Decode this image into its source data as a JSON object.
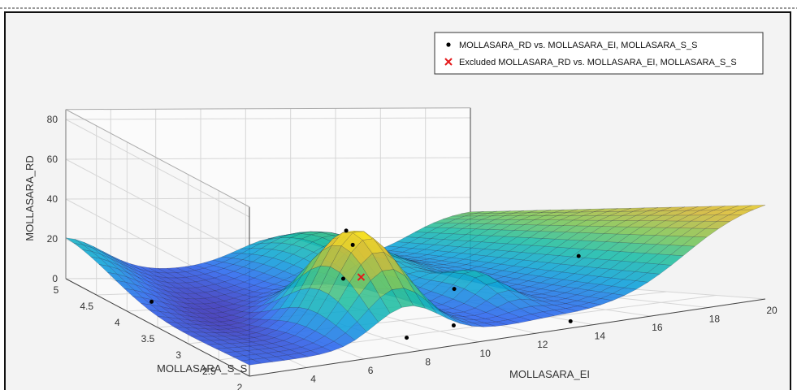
{
  "chart_data": {
    "type": "surface",
    "xlabel": "MOLLASARA_EI",
    "ylabel": "MOLLASARA_S_S",
    "zlabel": "MOLLASARA_RD",
    "x_ticks": [
      "4",
      "6",
      "8",
      "10",
      "12",
      "14",
      "16",
      "18",
      "20"
    ],
    "y_ticks": [
      "2",
      "2.5",
      "3",
      "3.5",
      "4",
      "4.5",
      "5"
    ],
    "z_ticks": [
      "0",
      "20",
      "40",
      "60",
      "80"
    ],
    "xlim": [
      2,
      20
    ],
    "ylim": [
      2,
      5
    ],
    "zlim": [
      0,
      85
    ],
    "grid": true,
    "legend": {
      "placement": "top-right",
      "entries": [
        "MOLLASARA_RD vs. MOLLASARA_EI, MOLLASARA_S_S",
        "Excluded MOLLASARA_RD vs. MOLLASARA_EI, MOLLASARA_S_S"
      ]
    },
    "series": [
      {
        "name": "MOLLASARA_RD vs. MOLLASARA_EI, MOLLASARA_S_S",
        "marker": "dot",
        "points": [
          {
            "x": 3.0,
            "y": 4.0,
            "z": 4
          },
          {
            "x": 8.5,
            "y": 3.2,
            "z": 45
          },
          {
            "x": 8.0,
            "y": 2.2,
            "z": 4
          },
          {
            "x": 10.5,
            "y": 2.5,
            "z": 2
          },
          {
            "x": 12.0,
            "y": 3.0,
            "z": 13
          },
          {
            "x": 13.5,
            "y": 2.1,
            "z": 2
          },
          {
            "x": 16.0,
            "y": 2.8,
            "z": 25
          },
          {
            "x": 12.5,
            "y": 4.5,
            "z": 4
          },
          {
            "x": 14.0,
            "y": 4.8,
            "z": 18
          }
        ]
      },
      {
        "name": "Excluded MOLLASARA_RD vs. MOLLASARA_EI, MOLLASARA_S_S",
        "marker": "x",
        "color": "#e41a1c",
        "points": [
          {
            "x": 8.5,
            "y": 3.0,
            "z": 24
          }
        ]
      }
    ],
    "surface_colormap": [
      "#3e26a8",
      "#2f67ee",
      "#12a4da",
      "#20bfa8",
      "#7fc75a",
      "#d6b93a",
      "#f9e51f"
    ]
  }
}
